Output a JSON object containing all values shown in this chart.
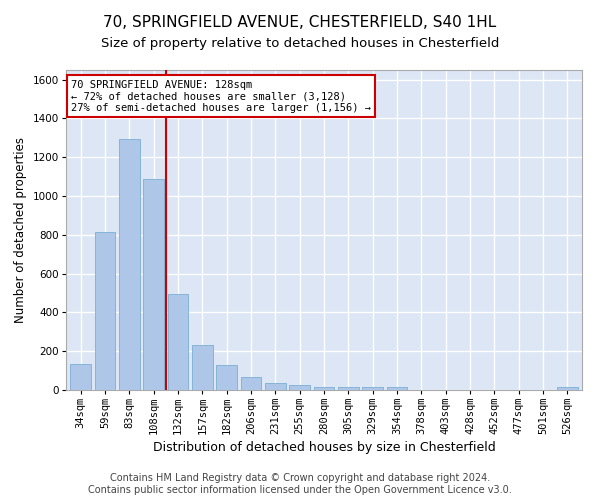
{
  "title1": "70, SPRINGFIELD AVENUE, CHESTERFIELD, S40 1HL",
  "title2": "Size of property relative to detached houses in Chesterfield",
  "xlabel": "Distribution of detached houses by size in Chesterfield",
  "ylabel": "Number of detached properties",
  "bar_labels": [
    "34sqm",
    "59sqm",
    "83sqm",
    "108sqm",
    "132sqm",
    "157sqm",
    "182sqm",
    "206sqm",
    "231sqm",
    "255sqm",
    "280sqm",
    "305sqm",
    "329sqm",
    "354sqm",
    "378sqm",
    "403sqm",
    "428sqm",
    "452sqm",
    "477sqm",
    "501sqm",
    "526sqm"
  ],
  "bar_values": [
    135,
    815,
    1295,
    1090,
    495,
    230,
    130,
    65,
    38,
    28,
    15,
    13,
    13,
    13,
    0,
    0,
    0,
    0,
    0,
    0,
    13
  ],
  "bar_color": "#aec6e8",
  "bar_edge_color": "#7bafd4",
  "vline_x": 3.5,
  "vline_color": "#cc0000",
  "annotation_line1": "70 SPRINGFIELD AVENUE: 128sqm",
  "annotation_line2": "← 72% of detached houses are smaller (3,128)",
  "annotation_line3": "27% of semi-detached houses are larger (1,156) →",
  "annotation_box_color": "#cc0000",
  "ylim": [
    0,
    1650
  ],
  "yticks": [
    0,
    200,
    400,
    600,
    800,
    1000,
    1200,
    1400,
    1600
  ],
  "footnote": "Contains HM Land Registry data © Crown copyright and database right 2024.\nContains public sector information licensed under the Open Government Licence v3.0.",
  "bg_color": "#ffffff",
  "plot_bg_color": "#dce6f5",
  "grid_color": "#ffffff",
  "title1_fontsize": 11,
  "title2_fontsize": 9.5,
  "xlabel_fontsize": 9,
  "ylabel_fontsize": 8.5,
  "tick_fontsize": 7.5,
  "annotation_fontsize": 7.5,
  "footnote_fontsize": 7
}
